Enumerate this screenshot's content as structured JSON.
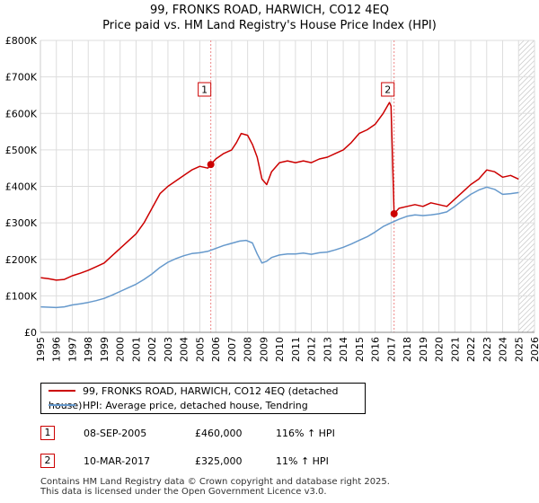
{
  "title": "99, FRONKS ROAD, HARWICH, CO12 4EQ",
  "subtitle": "Price paid vs. HM Land Registry's House Price Index (HPI)",
  "colors": {
    "property": "#cc0000",
    "hpi": "#6699cc",
    "grid": "#dddddd",
    "vline": "#ee8888",
    "hatch": "#bbbbbb"
  },
  "chart_data": {
    "type": "line",
    "title": "99, FRONKS ROAD, HARWICH, CO12 4EQ",
    "subtitle": "Price paid vs. HM Land Registry's House Price Index (HPI)",
    "xlim": [
      1995,
      2026
    ],
    "ylim": [
      0,
      800000
    ],
    "yticks": [
      0,
      100000,
      200000,
      300000,
      400000,
      500000,
      600000,
      700000,
      800000
    ],
    "ytick_labels": [
      "£0",
      "£100K",
      "£200K",
      "£300K",
      "£400K",
      "£500K",
      "£600K",
      "£700K",
      "£800K"
    ],
    "xticks": [
      "1995",
      "1996",
      "1997",
      "1998",
      "1999",
      "2000",
      "2001",
      "2002",
      "2003",
      "2004",
      "2005",
      "2006",
      "2007",
      "2008",
      "2009",
      "2010",
      "2011",
      "2012",
      "2013",
      "2014",
      "2015",
      "2016",
      "2017",
      "2018",
      "2019",
      "2020",
      "2021",
      "2022",
      "2023",
      "2024",
      "2025",
      "2026"
    ],
    "grid": true,
    "hatched_region_start": 2025.0,
    "series": [
      {
        "name": "99, FRONKS ROAD, HARWICH, CO12 4EQ (detached house)",
        "x": [
          1995.0,
          1995.5,
          1996.0,
          1996.5,
          1997.0,
          1997.5,
          1998.0,
          1998.5,
          1999.0,
          1999.5,
          2000.0,
          2000.5,
          2001.0,
          2001.5,
          2002.0,
          2002.5,
          2003.0,
          2003.5,
          2004.0,
          2004.5,
          2005.0,
          2005.5,
          2005.69,
          2006.0,
          2006.5,
          2007.0,
          2007.3,
          2007.6,
          2008.0,
          2008.3,
          2008.6,
          2008.9,
          2009.2,
          2009.5,
          2010.0,
          2010.5,
          2011.0,
          2011.5,
          2012.0,
          2012.5,
          2013.0,
          2013.5,
          2014.0,
          2014.5,
          2015.0,
          2015.5,
          2016.0,
          2016.5,
          2016.9,
          2017.0,
          2017.19,
          2017.5,
          2018.0,
          2018.5,
          2019.0,
          2019.5,
          2020.0,
          2020.5,
          2021.0,
          2021.5,
          2022.0,
          2022.5,
          2023.0,
          2023.5,
          2024.0,
          2024.5,
          2025.0
        ],
        "values": [
          150000,
          147000,
          143000,
          145000,
          155000,
          162000,
          170000,
          180000,
          190000,
          210000,
          230000,
          250000,
          270000,
          300000,
          340000,
          380000,
          400000,
          415000,
          430000,
          445000,
          455000,
          450000,
          460000,
          475000,
          490000,
          500000,
          520000,
          545000,
          540000,
          515000,
          480000,
          420000,
          405000,
          440000,
          465000,
          470000,
          465000,
          470000,
          465000,
          475000,
          480000,
          490000,
          500000,
          520000,
          545000,
          555000,
          570000,
          600000,
          630000,
          620000,
          325000,
          340000,
          345000,
          350000,
          345000,
          355000,
          350000,
          345000,
          365000,
          385000,
          405000,
          420000,
          445000,
          440000,
          425000,
          430000,
          420000
        ]
      },
      {
        "name": "HPI: Average price, detached house, Tendring",
        "x": [
          1995.0,
          1995.5,
          1996.0,
          1996.5,
          1997.0,
          1997.5,
          1998.0,
          1998.5,
          1999.0,
          1999.5,
          2000.0,
          2000.5,
          2001.0,
          2001.5,
          2002.0,
          2002.5,
          2003.0,
          2003.5,
          2004.0,
          2004.5,
          2005.0,
          2005.5,
          2006.0,
          2006.5,
          2007.0,
          2007.5,
          2007.9,
          2008.3,
          2008.6,
          2008.9,
          2009.2,
          2009.5,
          2010.0,
          2010.5,
          2011.0,
          2011.5,
          2012.0,
          2012.5,
          2013.0,
          2013.5,
          2014.0,
          2014.5,
          2015.0,
          2015.5,
          2016.0,
          2016.5,
          2017.0,
          2017.5,
          2018.0,
          2018.5,
          2019.0,
          2019.5,
          2020.0,
          2020.5,
          2021.0,
          2021.5,
          2022.0,
          2022.5,
          2023.0,
          2023.5,
          2024.0,
          2024.5,
          2025.0
        ],
        "values": [
          70000,
          69000,
          68000,
          70000,
          75000,
          78000,
          82000,
          87000,
          93000,
          102000,
          112000,
          122000,
          132000,
          145000,
          160000,
          178000,
          192000,
          202000,
          210000,
          216000,
          218000,
          222000,
          230000,
          238000,
          244000,
          250000,
          252000,
          245000,
          215000,
          190000,
          195000,
          205000,
          212000,
          215000,
          215000,
          217000,
          214000,
          218000,
          220000,
          226000,
          233000,
          242000,
          252000,
          262000,
          275000,
          290000,
          300000,
          310000,
          318000,
          322000,
          320000,
          322000,
          325000,
          330000,
          345000,
          362000,
          378000,
          390000,
          398000,
          392000,
          378000,
          380000,
          383000
        ]
      }
    ],
    "transactions": [
      {
        "label": "1",
        "x": 2005.69,
        "y": 460000
      },
      {
        "label": "2",
        "x": 2017.19,
        "y": 325000
      }
    ]
  },
  "legend": {
    "property_label": "99, FRONKS ROAD, HARWICH, CO12 4EQ (detached house)",
    "hpi_label": "HPI: Average price, detached house, Tendring"
  },
  "transactions_table": [
    {
      "marker": "1",
      "date": "08-SEP-2005",
      "price": "£460,000",
      "hpi_change": "116% ↑ HPI"
    },
    {
      "marker": "2",
      "date": "10-MAR-2017",
      "price": "£325,000",
      "hpi_change": "11% ↑ HPI"
    }
  ],
  "footer": {
    "line1": "Contains HM Land Registry data © Crown copyright and database right 2025.",
    "line2": "This data is licensed under the Open Government Licence v3.0."
  }
}
